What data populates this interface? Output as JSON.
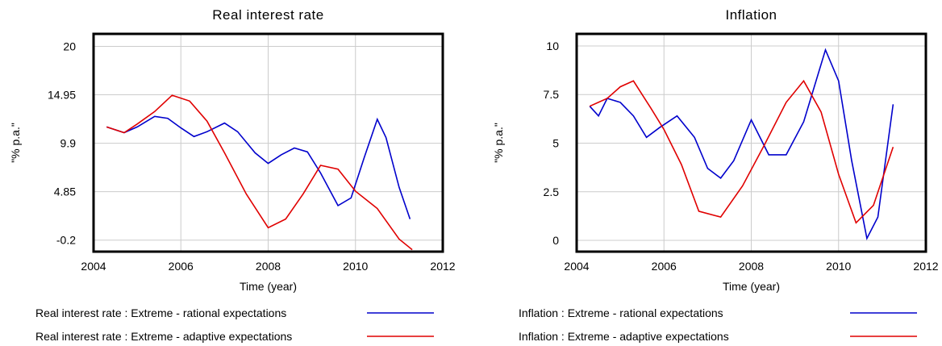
{
  "chart_data": [
    {
      "type": "line",
      "title": "Real interest rate",
      "x_label": "Time (year)",
      "y_label": "\"% p.a.\"",
      "xlim": [
        2004,
        2012
      ],
      "xticks": [
        2004,
        2006,
        2008,
        2010,
        2012
      ],
      "ylim": [
        -1.4,
        21.3
      ],
      "yticks": [
        20,
        14.95,
        9.9,
        4.85,
        -0.2
      ],
      "series": [
        {
          "name": "Real interest rate : Extreme - rational expectations",
          "color": "#0000cc",
          "x": [
            2004.3,
            2004.7,
            2005.0,
            2005.4,
            2005.7,
            2006.0,
            2006.3,
            2006.6,
            2007.0,
            2007.3,
            2007.7,
            2008.0,
            2008.3,
            2008.6,
            2008.9,
            2009.2,
            2009.6,
            2009.9,
            2010.2,
            2010.5,
            2010.7,
            2011.0,
            2011.25
          ],
          "values": [
            11.6,
            11.0,
            11.6,
            12.7,
            12.5,
            11.5,
            10.6,
            11.1,
            12.0,
            11.1,
            8.9,
            7.8,
            8.7,
            9.4,
            9.0,
            6.8,
            3.4,
            4.2,
            8.4,
            12.4,
            10.5,
            5.3,
            2.0
          ]
        },
        {
          "name": "Real interest rate : Extreme - adaptive expectations",
          "color": "#e00000",
          "x": [
            2004.3,
            2004.7,
            2005.0,
            2005.4,
            2005.8,
            2006.2,
            2006.6,
            2007.0,
            2007.5,
            2008.0,
            2008.4,
            2008.8,
            2009.2,
            2009.6,
            2010.0,
            2010.5,
            2011.0,
            2011.3
          ],
          "values": [
            11.6,
            11.0,
            11.9,
            13.2,
            14.9,
            14.3,
            12.2,
            8.9,
            4.6,
            1.1,
            2.0,
            4.6,
            7.6,
            7.2,
            4.9,
            3.1,
            -0.1,
            -1.2
          ]
        }
      ]
    },
    {
      "type": "line",
      "title": "Inflation",
      "x_label": "Time (year)",
      "y_label": "\"% p.a.\"",
      "xlim": [
        2004,
        2012
      ],
      "xticks": [
        2004,
        2006,
        2008,
        2010,
        2012
      ],
      "ylim": [
        -0.58,
        10.62
      ],
      "yticks": [
        10,
        7.5,
        5,
        2.5,
        0
      ],
      "series": [
        {
          "name": "Inflation : Extreme - rational expectations",
          "color": "#0000cc",
          "x": [
            2004.3,
            2004.5,
            2004.7,
            2005.0,
            2005.3,
            2005.6,
            2005.9,
            2006.3,
            2006.7,
            2007.0,
            2007.3,
            2007.6,
            2008.0,
            2008.4,
            2008.8,
            2009.2,
            2009.7,
            2010.0,
            2010.3,
            2010.65,
            2010.9,
            2011.25
          ],
          "values": [
            6.9,
            6.4,
            7.3,
            7.1,
            6.4,
            5.3,
            5.8,
            6.4,
            5.3,
            3.7,
            3.2,
            4.1,
            6.2,
            4.4,
            4.4,
            6.1,
            9.8,
            8.2,
            4.1,
            0.1,
            1.2,
            7.0
          ]
        },
        {
          "name": "Inflation : Extreme - adaptive expectations",
          "color": "#e00000",
          "x": [
            2004.3,
            2004.7,
            2005.0,
            2005.3,
            2005.7,
            2006.0,
            2006.4,
            2006.8,
            2007.3,
            2007.8,
            2008.3,
            2008.8,
            2009.2,
            2009.6,
            2010.0,
            2010.4,
            2010.8,
            2011.25
          ],
          "values": [
            6.9,
            7.3,
            7.9,
            8.2,
            6.8,
            5.7,
            3.9,
            1.5,
            1.2,
            2.8,
            4.9,
            7.1,
            8.2,
            6.6,
            3.4,
            0.9,
            1.8,
            4.8
          ]
        }
      ]
    }
  ]
}
